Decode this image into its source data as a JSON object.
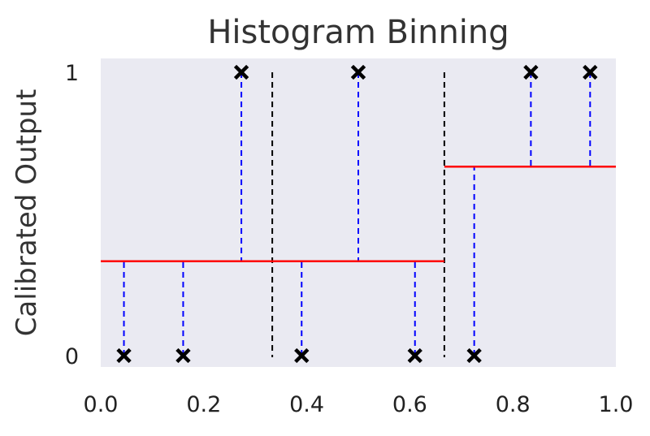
{
  "chart_data": {
    "type": "scatter",
    "title": "Histogram Binning",
    "xlabel": "",
    "ylabel": "Calibrated Output",
    "xlim": [
      0.0,
      1.0
    ],
    "ylim": [
      0,
      1
    ],
    "x_ticks": [
      "0.0",
      "0.2",
      "0.4",
      "0.6",
      "0.8",
      "1.0"
    ],
    "x_tick_values": [
      0.0,
      0.2,
      0.4,
      0.6,
      0.8,
      1.0
    ],
    "y_ticks": [
      "0",
      "1"
    ],
    "y_tick_values": [
      0,
      1
    ],
    "grid": false,
    "background": "#eaeaf2",
    "points": [
      {
        "x": 0.045,
        "y": 0
      },
      {
        "x": 0.16,
        "y": 0
      },
      {
        "x": 0.273,
        "y": 1
      },
      {
        "x": 0.39,
        "y": 0
      },
      {
        "x": 0.5,
        "y": 1
      },
      {
        "x": 0.61,
        "y": 0
      },
      {
        "x": 0.725,
        "y": 0
      },
      {
        "x": 0.835,
        "y": 1
      },
      {
        "x": 0.95,
        "y": 1
      }
    ],
    "bin_edges": [
      0.333,
      0.667
    ],
    "bin_values": [
      {
        "x0": 0.0,
        "x1": 0.667,
        "y": 0.333
      },
      {
        "x0": 0.667,
        "x1": 1.0,
        "y": 0.667
      }
    ],
    "colors": {
      "points": "#000000",
      "residuals": "#0000ff",
      "bin_edges": "#000000",
      "calibration_line": "#ff0000"
    }
  }
}
